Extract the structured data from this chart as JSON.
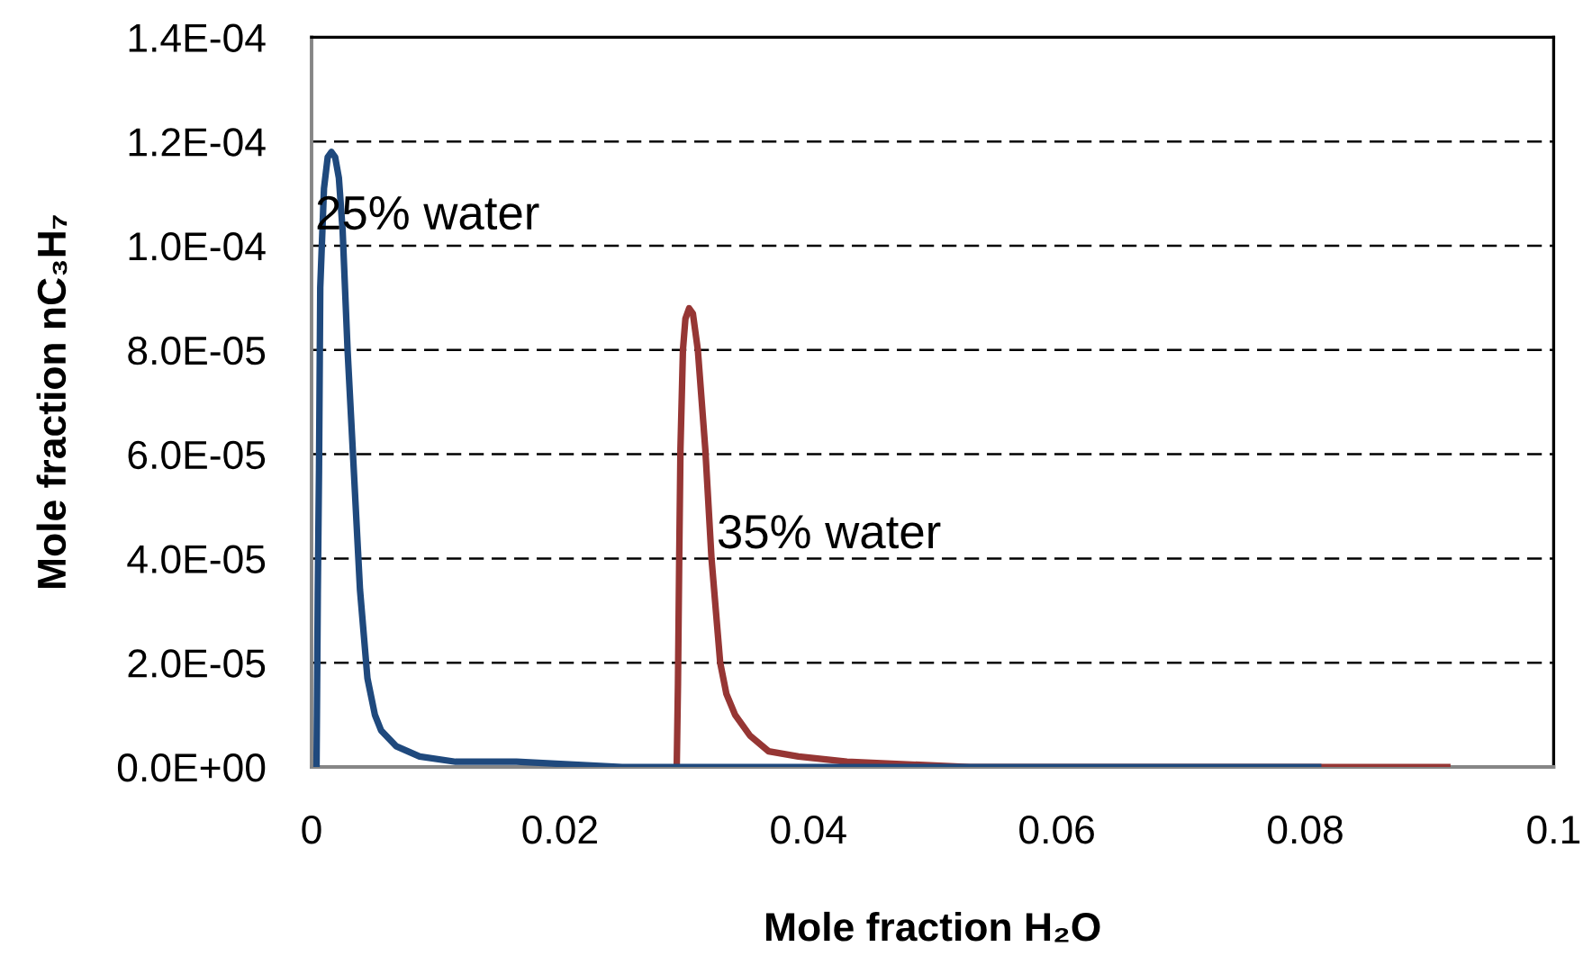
{
  "chart_data": {
    "type": "line",
    "xlabel": "Mole fraction H₂O",
    "ylabel": "Mole fraction nC₃H₇",
    "xlim": [
      0,
      0.1
    ],
    "xticks": [
      0,
      0.02,
      0.04,
      0.06,
      0.08,
      0.1
    ],
    "ylim": [
      0,
      0.00014
    ],
    "yticks": [
      {
        "value": 0,
        "label": "0.0E+00"
      },
      {
        "value": 2e-05,
        "label": "2.0E-05"
      },
      {
        "value": 4e-05,
        "label": "4.0E-05"
      },
      {
        "value": 6e-05,
        "label": "6.0E-05"
      },
      {
        "value": 8e-05,
        "label": "8.0E-05"
      },
      {
        "value": 0.0001,
        "label": "1.0E-04"
      },
      {
        "value": 0.00012,
        "label": "1.2E-04"
      },
      {
        "value": 0.00014,
        "label": "1.4E-04"
      }
    ],
    "grid": "y",
    "line_style": "solid",
    "series": [
      {
        "name": "25% water",
        "color": "#1f497d",
        "x": [
          0.0004,
          0.0005,
          0.0006,
          0.0007,
          0.001,
          0.0013,
          0.0016,
          0.0019,
          0.0022,
          0.0025,
          0.0029,
          0.0034,
          0.0039,
          0.0045,
          0.0051,
          0.0056,
          0.0068,
          0.0087,
          0.0116,
          0.0165,
          0.025,
          0.0813
        ],
        "values": [
          0,
          3.3e-05,
          5.7e-05,
          9.2e-05,
          0.000111,
          0.000117,
          0.000118,
          0.000117,
          0.000113,
          0.000103,
          8e-05,
          5.7e-05,
          3.4e-05,
          1.7e-05,
          1e-05,
          7e-06,
          4e-06,
          2e-06,
          1e-06,
          1e-06,
          0,
          0
        ]
      },
      {
        "name": "35% water",
        "color": "#963634",
        "x": [
          0.0294,
          0.0295,
          0.0296,
          0.0297,
          0.0299,
          0.0301,
          0.0304,
          0.0307,
          0.0311,
          0.0317,
          0.0322,
          0.0329,
          0.0334,
          0.0341,
          0.0353,
          0.0368,
          0.0392,
          0.0431,
          0.053,
          0.0813,
          0.0917
        ],
        "values": [
          0,
          1.6e-05,
          4e-05,
          6.1e-05,
          8e-05,
          8.6e-05,
          8.8e-05,
          8.7e-05,
          8e-05,
          6.1e-05,
          4e-05,
          2e-05,
          1.4e-05,
          1e-05,
          6e-06,
          3e-06,
          2e-06,
          1e-06,
          0,
          0,
          0
        ]
      }
    ]
  }
}
